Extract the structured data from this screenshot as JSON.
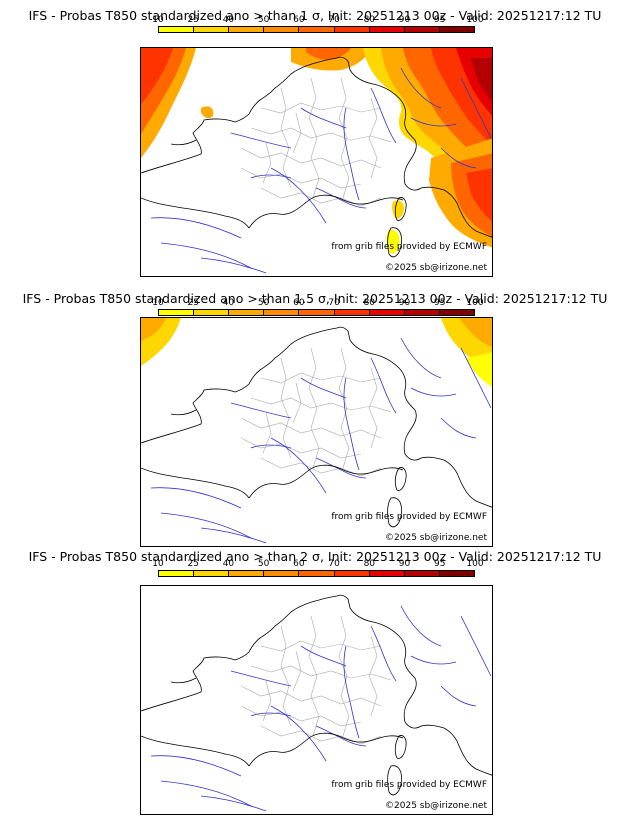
{
  "colorbar": {
    "ticks": [
      "10",
      "25",
      "40",
      "50",
      "60",
      "70",
      "80",
      "90",
      "95",
      "100"
    ],
    "colors": [
      "#ffff00",
      "#ffd700",
      "#ffaa00",
      "#ff8c00",
      "#ff6600",
      "#ff3300",
      "#e60000",
      "#b30000",
      "#800000"
    ]
  },
  "colors": {
    "land_border": "#000000",
    "rivers": "#3333cc",
    "regions": "#aaaaaa"
  },
  "panels": [
    {
      "title": "IFS - Probas T850  standardized ano > than 1 σ, Init: 20251213 00z - Valid: 20251217:12 TU",
      "credit_source": "from grib files provided by ECMWF",
      "credit_copyright": "©2025 sb@irizone.net",
      "level": "high"
    },
    {
      "title": "IFS - Probas T850  standardized ano > than 1.5 σ, Init: 20251213 00z - Valid: 20251217:12 TU",
      "credit_source": "from grib files provided by ECMWF",
      "credit_copyright": "©2025 sb@irizone.net",
      "level": "medium"
    },
    {
      "title": "IFS - Probas T850  standardized ano > than 2 σ, Init: 20251213 00z - Valid: 20251217:12 TU",
      "credit_source": "from grib files provided by ECMWF",
      "credit_copyright": "©2025 sb@irizone.net",
      "level": "none"
    }
  ]
}
